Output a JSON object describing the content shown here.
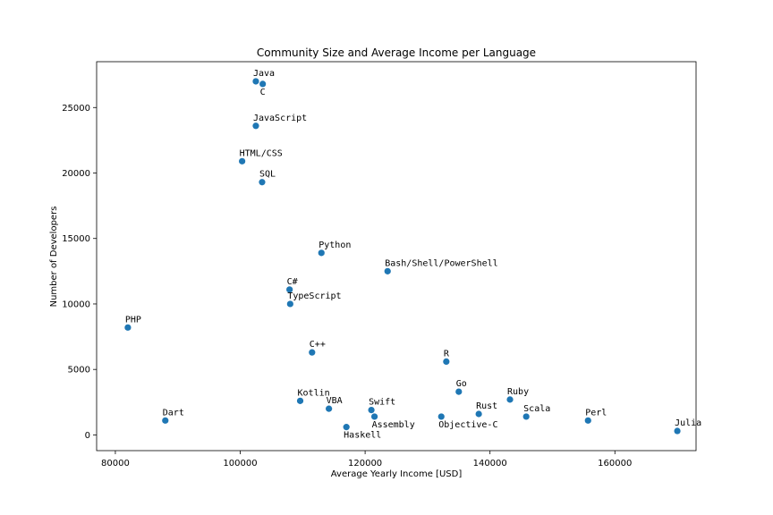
{
  "chart_data": {
    "type": "scatter",
    "title": "Community Size and Average Income per Language",
    "xlabel": "Average Yearly Income [USD]",
    "ylabel": "Number of Developers",
    "xlim": [
      77000,
      173000
    ],
    "ylim": [
      -1200,
      28500
    ],
    "xticks": [
      80000,
      100000,
      120000,
      140000,
      160000
    ],
    "yticks": [
      0,
      5000,
      10000,
      15000,
      20000,
      25000
    ],
    "grid": false,
    "marker_color": "#1f77b4",
    "points": [
      {
        "name": "Java",
        "x": 102500,
        "y": 27000
      },
      {
        "name": "C",
        "x": 103600,
        "y": 26800
      },
      {
        "name": "JavaScript",
        "x": 102500,
        "y": 23600
      },
      {
        "name": "HTML/CSS",
        "x": 100300,
        "y": 20900
      },
      {
        "name": "SQL",
        "x": 103500,
        "y": 19300
      },
      {
        "name": "Python",
        "x": 113000,
        "y": 13900
      },
      {
        "name": "Bash/Shell/PowerShell",
        "x": 123600,
        "y": 12500
      },
      {
        "name": "C#",
        "x": 107900,
        "y": 11100
      },
      {
        "name": "TypeScript",
        "x": 108000,
        "y": 10000
      },
      {
        "name": "PHP",
        "x": 82000,
        "y": 8200
      },
      {
        "name": "C++",
        "x": 111500,
        "y": 6300
      },
      {
        "name": "R",
        "x": 133000,
        "y": 5600
      },
      {
        "name": "Go",
        "x": 135000,
        "y": 3300
      },
      {
        "name": "Kotlin",
        "x": 109600,
        "y": 2600
      },
      {
        "name": "Ruby",
        "x": 143200,
        "y": 2700
      },
      {
        "name": "VBA",
        "x": 114200,
        "y": 2000
      },
      {
        "name": "Swift",
        "x": 121000,
        "y": 1900
      },
      {
        "name": "Rust",
        "x": 138200,
        "y": 1600
      },
      {
        "name": "Scala",
        "x": 145800,
        "y": 1400
      },
      {
        "name": "Assembly",
        "x": 121500,
        "y": 1400
      },
      {
        "name": "Objective-C",
        "x": 132200,
        "y": 1400
      },
      {
        "name": "Dart",
        "x": 88000,
        "y": 1100
      },
      {
        "name": "Perl",
        "x": 155700,
        "y": 1100
      },
      {
        "name": "Haskell",
        "x": 117000,
        "y": 600
      },
      {
        "name": "Julia",
        "x": 170000,
        "y": 300
      }
    ]
  }
}
